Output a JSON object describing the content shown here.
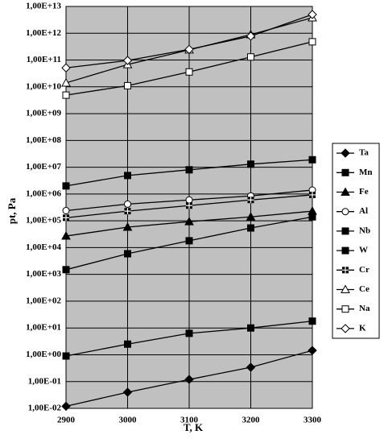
{
  "chart_data": {
    "type": "line",
    "x_label": "T, K",
    "y_label": "pt, Pa",
    "x": [
      2900,
      3000,
      3100,
      3200,
      3300
    ],
    "xlim": [
      2900,
      3300
    ],
    "xticks": [
      2900,
      3000,
      3100,
      3200,
      3300
    ],
    "log_y": true,
    "grid": true,
    "legend": "right",
    "ylim": [
      0.01,
      10000000000000
    ],
    "yticks": [
      {
        "value": 0.01,
        "label": "1,00E-02"
      },
      {
        "value": 0.1,
        "label": "1,00E-01"
      },
      {
        "value": 1,
        "label": "1,00E+00"
      },
      {
        "value": 10,
        "label": "1,00E+01"
      },
      {
        "value": 100,
        "label": "1,00E+02"
      },
      {
        "value": 1000,
        "label": "1,00E+03"
      },
      {
        "value": 10000,
        "label": "1,00E+04"
      },
      {
        "value": 100000,
        "label": "1,00E+05"
      },
      {
        "value": 1000000,
        "label": "1,00E+06"
      },
      {
        "value": 10000000,
        "label": "1,00E+07"
      },
      {
        "value": 100000000,
        "label": "1,00E+08"
      },
      {
        "value": 1000000000,
        "label": "1,00E+09"
      },
      {
        "value": 10000000000,
        "label": "1,00E+10"
      },
      {
        "value": 100000000000,
        "label": "1,00E+11"
      },
      {
        "value": 1000000000000,
        "label": "1,00E+12"
      },
      {
        "value": 10000000000000,
        "label": "1,00E+13"
      }
    ],
    "series": [
      {
        "name": "Ta",
        "color": "#000000",
        "marker": "diamond",
        "filled": true,
        "values": [
          0.012,
          0.04,
          0.12,
          0.34,
          1.45
        ]
      },
      {
        "name": "Mn",
        "color": "#000000",
        "marker": "square",
        "filled": true,
        "values": [
          0.9,
          2.5,
          6.3,
          10,
          18
        ]
      },
      {
        "name": "Fe",
        "color": "#000000",
        "marker": "triangle",
        "filled": true,
        "values": [
          27000,
          58000,
          93000,
          140000,
          230000
        ]
      },
      {
        "name": "Al",
        "color": "#000000",
        "marker": "circle",
        "filled": false,
        "values": [
          240000,
          420000,
          600000,
          850000,
          1400000
        ]
      },
      {
        "name": "Nb",
        "color": "#000000",
        "marker": "square",
        "filled": true,
        "values": [
          1500,
          5900,
          18000,
          54000,
          140000
        ]
      },
      {
        "name": "W",
        "color": "#000000",
        "marker": "square",
        "filled": true,
        "values": [
          2000000,
          4900000,
          8000000,
          13000000,
          19000000
        ]
      },
      {
        "name": "Cr",
        "color": "#000000",
        "marker": "cross-square",
        "filled": true,
        "values": [
          130000,
          230000,
          370000,
          600000,
          930000
        ]
      },
      {
        "name": "Ce",
        "color": "#000000",
        "marker": "triangle",
        "filled": false,
        "values": [
          14000000000,
          68000000000,
          240000000000,
          890000000000,
          3800000000000
        ]
      },
      {
        "name": "Na",
        "color": "#000000",
        "marker": "square",
        "filled": false,
        "values": [
          4900000000,
          11000000000,
          36000000000,
          130000000000,
          480000000000
        ]
      },
      {
        "name": "K",
        "color": "#000000",
        "marker": "diamond",
        "filled": false,
        "values": [
          51000000000,
          96000000000,
          250000000000,
          780000000000,
          5000000000000
        ]
      }
    ]
  }
}
